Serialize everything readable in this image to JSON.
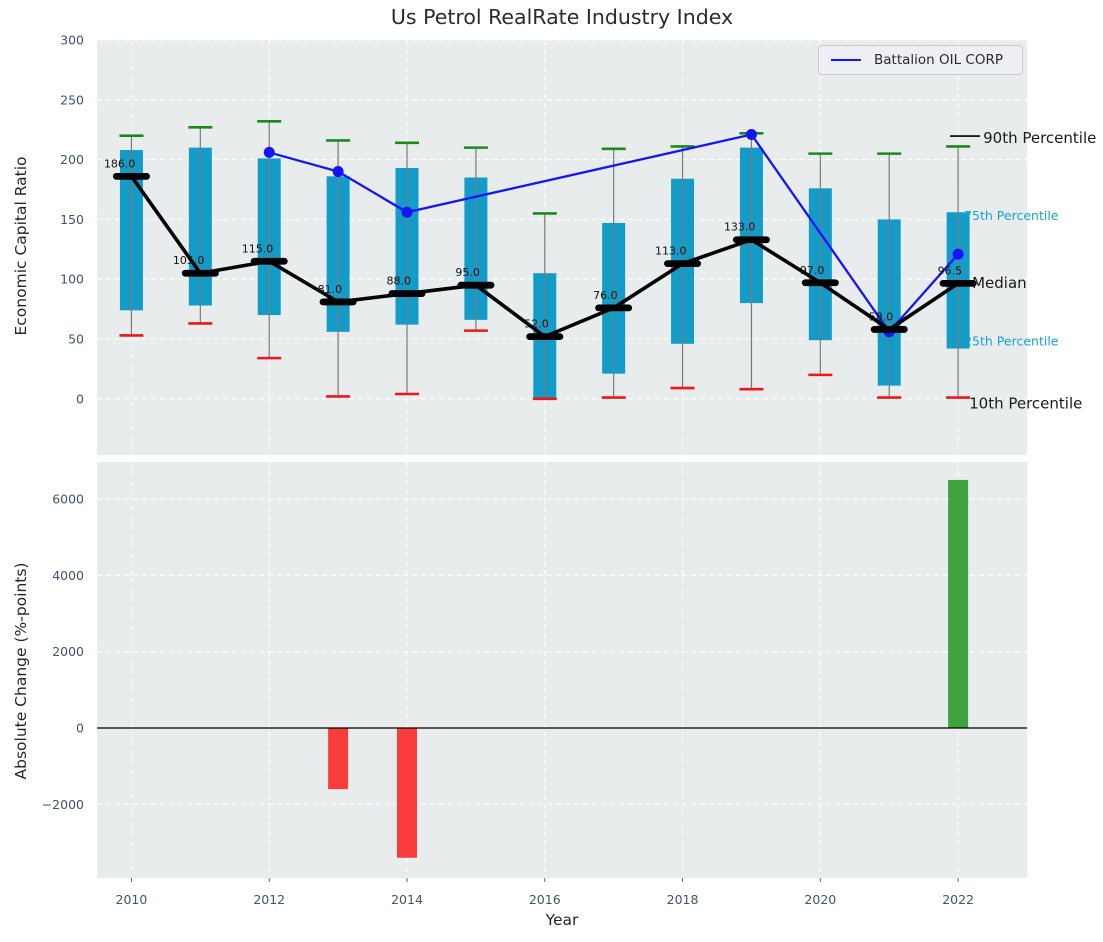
{
  "title": "Us Petrol RealRate Industry Index",
  "legend": {
    "label": "Battalion OIL CORP"
  },
  "colors": {
    "plot_bg": "#e8eced",
    "grid": "#ffffff",
    "box": "#149cc8",
    "median": "#000000",
    "company_line": "#1414f5",
    "cap_high": "#1b8a1b",
    "cap_low": "#f01616",
    "bar_pos": "#3ea23e",
    "bar_neg": "#fa3c3c",
    "whisker": "#7a7a7a",
    "tick_label": "#44536b",
    "percentile_label": "#18a1d2",
    "text_dark": "#1a1a1a"
  },
  "chart_data": [
    {
      "type": "boxplot",
      "title": "Us Petrol RealRate Industry Index",
      "ylabel": "Economic Capital Ratio",
      "ylim": [
        -47,
        300
      ],
      "yticks": [
        0,
        50,
        100,
        150,
        200,
        250,
        300
      ],
      "grid": true,
      "legend_position": "upper right",
      "years": [
        2010,
        2011,
        2012,
        2013,
        2014,
        2015,
        2016,
        2017,
        2018,
        2019,
        2020,
        2021,
        2022
      ],
      "p90": [
        220,
        227,
        232,
        216,
        214,
        210,
        155,
        209,
        211,
        222,
        205,
        205,
        211
      ],
      "p75": [
        208,
        210,
        201,
        186,
        193,
        185,
        105,
        147,
        184,
        210,
        176,
        150,
        156
      ],
      "median": [
        186,
        105,
        115,
        81,
        88,
        95,
        52,
        76,
        113,
        133,
        97,
        58,
        96.5
      ],
      "median_labels": [
        "186.0",
        "105.0",
        "115.0",
        "81.0",
        "88.0",
        "95.0",
        "52.0",
        "76.0",
        "113.0",
        "133.0",
        "97.0",
        "58.0",
        "96.5"
      ],
      "p25": [
        74,
        78,
        70,
        56,
        62,
        66,
        1,
        21,
        46,
        80,
        49,
        11,
        42
      ],
      "p10": [
        53,
        63,
        34,
        2,
        4,
        57,
        0,
        1,
        9,
        8,
        20,
        1,
        1
      ],
      "company_line": {
        "name": "Battalion OIL CORP",
        "points": [
          [
            2012,
            206
          ],
          [
            2013,
            190
          ],
          [
            2014,
            156
          ],
          [
            2019,
            221
          ],
          [
            2021,
            56
          ],
          [
            2022,
            121
          ]
        ]
      },
      "right_labels": [
        {
          "text": "90th Percentile",
          "value": 218,
          "style": "dark",
          "leader": true
        },
        {
          "text": "75th Percentile",
          "value": 153,
          "style": "accent"
        },
        {
          "text": "Median",
          "value": 97,
          "style": "dark"
        },
        {
          "text": "25th Percentile",
          "value": 48,
          "style": "accent"
        },
        {
          "text": "10th Percentile",
          "value": -4,
          "style": "dark"
        }
      ]
    },
    {
      "type": "bar",
      "ylabel": "Absolute Change (%-points)",
      "xlabel": "Year",
      "ylim": [
        -3930,
        6970
      ],
      "yticks": [
        -2000,
        0,
        2000,
        4000,
        6000
      ],
      "ytick_labels": [
        "−2000",
        "0",
        "2000",
        "4000",
        "6000"
      ],
      "years": [
        2010,
        2011,
        2012,
        2013,
        2014,
        2015,
        2016,
        2017,
        2018,
        2019,
        2020,
        2021,
        2022
      ],
      "values": [
        0,
        0,
        0,
        -1600,
        -3400,
        0,
        0,
        0,
        0,
        0,
        0,
        0,
        6500
      ],
      "xticks": [
        2010,
        2012,
        2014,
        2016,
        2018,
        2020,
        2022
      ]
    }
  ]
}
